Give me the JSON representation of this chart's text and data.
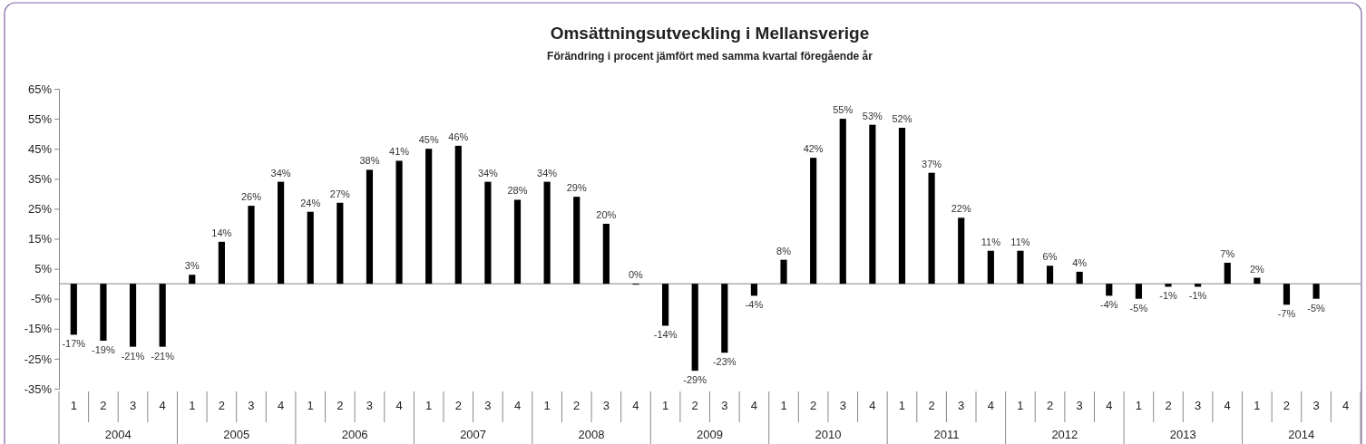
{
  "chart_data": {
    "type": "bar",
    "title": "Omsättningsutveckling i Mellansverige",
    "subtitle": "Förändring i procent jämfört med samma kvartal föregående år",
    "categories": [
      "1",
      "2",
      "3",
      "4",
      "1",
      "2",
      "3",
      "4",
      "1",
      "2",
      "3",
      "4",
      "1",
      "2",
      "3",
      "4",
      "1",
      "2",
      "3",
      "4",
      "1",
      "2",
      "3",
      "4",
      "1",
      "2",
      "3",
      "4",
      "1",
      "2",
      "3",
      "4",
      "1",
      "2",
      "3",
      "4",
      "1",
      "2",
      "3",
      "4",
      "1",
      "2",
      "3",
      "4"
    ],
    "values": [
      -17,
      -19,
      -21,
      -21,
      3,
      14,
      26,
      34,
      24,
      27,
      38,
      41,
      45,
      46,
      34,
      28,
      34,
      29,
      20,
      0,
      -14,
      -29,
      -23,
      -4,
      8,
      42,
      55,
      53,
      52,
      37,
      22,
      11,
      11,
      6,
      4,
      -4,
      -5,
      -1,
      -1,
      7,
      2,
      -7,
      -5,
      null
    ],
    "color": "#000000",
    "value_labels": [
      "-17%",
      "-19%",
      "-21%",
      "-21%",
      "3%",
      "14%",
      "26%",
      "34%",
      "24%",
      "27%",
      "38%",
      "41%",
      "45%",
      "46%",
      "34%",
      "28%",
      "34%",
      "29%",
      "20%",
      "0%",
      "-14%",
      "-29%",
      "-23%",
      "-4%",
      "8%",
      "42%",
      "55%",
      "53%",
      "52%",
      "37%",
      "22%",
      "11%",
      "11%",
      "6%",
      "4%",
      "-4%",
      "-5%",
      "-1%",
      "-1%",
      "7%",
      "2%",
      "-7%",
      "-5%",
      null
    ],
    "annotations": [
      "2004",
      "2005",
      "2006",
      "2007",
      "2008",
      "2009",
      "2010",
      "2011",
      "2012",
      "2013",
      "2014"
    ],
    "ylim": [
      -35,
      65
    ],
    "yticks": [
      {
        "value": -35,
        "label": "-35%"
      },
      {
        "value": -25,
        "label": "-25%"
      },
      {
        "value": -15,
        "label": "-15%"
      },
      {
        "value": -5,
        "label": "-5%"
      },
      {
        "value": 5,
        "label": "5%"
      },
      {
        "value": 15,
        "label": "15%"
      },
      {
        "value": 25,
        "label": "25%"
      },
      {
        "value": 35,
        "label": "35%"
      },
      {
        "value": 45,
        "label": "45%"
      },
      {
        "value": 55,
        "label": "55%"
      },
      {
        "value": 65,
        "label": "65%"
      }
    ],
    "grid": false
  }
}
